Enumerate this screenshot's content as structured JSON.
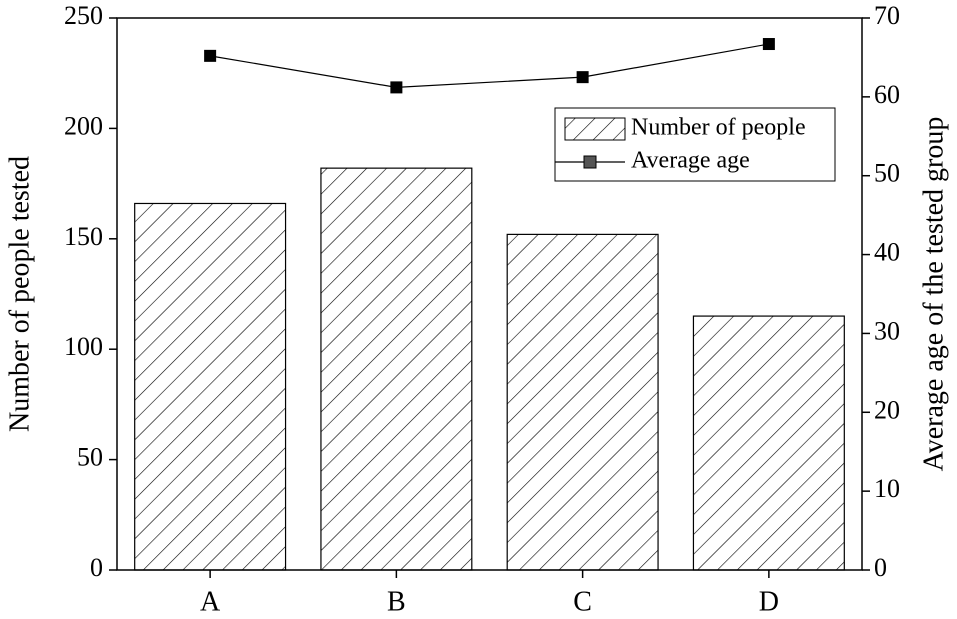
{
  "chart_data": {
    "type": "bar",
    "categories": [
      "A",
      "B",
      "C",
      "D"
    ],
    "series": [
      {
        "name": "Number of people",
        "type": "bar",
        "color": "#000000",
        "values": [
          166,
          182,
          152,
          115
        ]
      },
      {
        "name": "Average age",
        "type": "line",
        "axis": "y2",
        "color": "#000000",
        "values": [
          65.2,
          61.2,
          62.5,
          66.7
        ]
      }
    ],
    "ylabel": "Number of people tested",
    "y2label": "Average age of the tested group",
    "ylim": [
      0,
      250
    ],
    "yticks": [
      0,
      50,
      100,
      150,
      200,
      250
    ],
    "y2lim": [
      0,
      70
    ],
    "y2ticks": [
      0,
      10,
      20,
      30,
      40,
      50,
      60,
      70
    ],
    "legend": "upper-right"
  }
}
